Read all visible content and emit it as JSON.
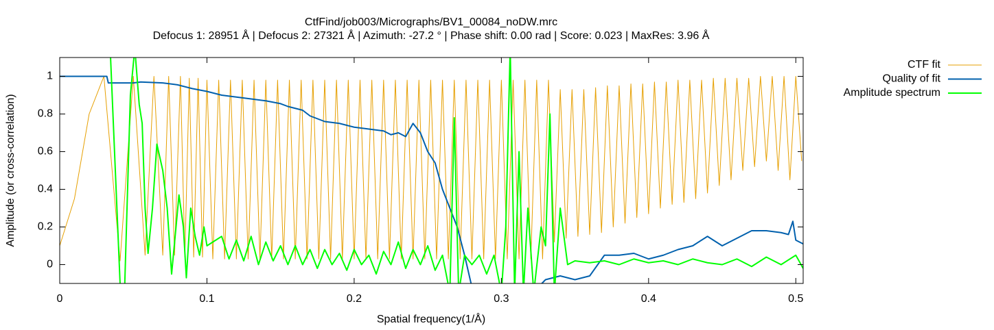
{
  "chart_data": {
    "type": "line",
    "title": "CtfFind/job003/Micrographs/BV1_00084_noDW.mrc",
    "subtitle": "Defocus 1: 28951 Å | Defocus 2: 27321 Å | Azimuth: -27.2 ° | Phase shift: 0.00 rad | Score: 0.023 | MaxRes: 3.96 Å",
    "x_label": "Spatial frequency(1/Å)",
    "y_label": "Amplitude (or cross-correlation)",
    "xlim": [
      0,
      0.505
    ],
    "ylim": [
      -0.1,
      1.1
    ],
    "xticks": [
      0,
      0.1,
      0.2,
      0.3,
      0.4,
      0.5
    ],
    "yticks": [
      0,
      0.2,
      0.4,
      0.6,
      0.8,
      1
    ],
    "grid": false,
    "legend": "top-right-outside",
    "series": [
      {
        "name": "CTF fit",
        "color": "#e69f00",
        "width": 1,
        "x": [
          0,
          0.01,
          0.02,
          0.03,
          0.041,
          0.05,
          0.058,
          0.064,
          0.07,
          0.074,
          0.078,
          0.082,
          0.085,
          0.088,
          0.091,
          0.094,
          0.097,
          0.1,
          0.104,
          0.108,
          0.112,
          0.116,
          0.12,
          0.124,
          0.128,
          0.132,
          0.136,
          0.14,
          0.144,
          0.148,
          0.152,
          0.156,
          0.16,
          0.164,
          0.168,
          0.172,
          0.176,
          0.18,
          0.184,
          0.188,
          0.192,
          0.196,
          0.2,
          0.204,
          0.208,
          0.212,
          0.216,
          0.22,
          0.224,
          0.228,
          0.232,
          0.236,
          0.24,
          0.244,
          0.248,
          0.252,
          0.256,
          0.26,
          0.264,
          0.268,
          0.272,
          0.276,
          0.28,
          0.284,
          0.288,
          0.292,
          0.296,
          0.3,
          0.304,
          0.308,
          0.312,
          0.316,
          0.32,
          0.324,
          0.328,
          0.332,
          0.336,
          0.34,
          0.344,
          0.348,
          0.352,
          0.356,
          0.36,
          0.364,
          0.368,
          0.372,
          0.376,
          0.38,
          0.384,
          0.388,
          0.392,
          0.396,
          0.4,
          0.404,
          0.408,
          0.412,
          0.416,
          0.42,
          0.424,
          0.428,
          0.432,
          0.436,
          0.44,
          0.444,
          0.448,
          0.452,
          0.456,
          0.46,
          0.464,
          0.468,
          0.472,
          0.476,
          0.48,
          0.484,
          0.488,
          0.492,
          0.496,
          0.5,
          0.504
        ],
        "values": [
          0.1,
          0.35,
          0.8,
          1,
          0.02,
          1,
          0.05,
          1,
          0.05,
          1,
          0.05,
          1,
          0.04,
          0.99,
          0.04,
          0.99,
          0.04,
          0.98,
          0.03,
          0.98,
          0.03,
          0.98,
          0.03,
          0.98,
          0.03,
          0.98,
          0.03,
          0.98,
          0.03,
          0.98,
          0.03,
          0.98,
          0.03,
          0.98,
          0.03,
          0.98,
          0.03,
          0.98,
          0.03,
          0.98,
          0.03,
          0.98,
          0.03,
          0.98,
          0.03,
          0.98,
          0.03,
          0.98,
          0.03,
          0.98,
          0.03,
          0.98,
          0.03,
          0.98,
          0.03,
          0.98,
          0.03,
          0.98,
          0.03,
          0.98,
          0.03,
          0.98,
          0.03,
          0.98,
          0.03,
          0.98,
          0.03,
          0.98,
          0.03,
          0.98,
          0.03,
          0.98,
          0.03,
          0.98,
          0.03,
          0.98,
          0.12,
          0.93,
          0.14,
          0.93,
          0.15,
          0.93,
          0.16,
          0.94,
          0.17,
          0.95,
          0.2,
          0.95,
          0.22,
          0.96,
          0.25,
          0.96,
          0.27,
          0.97,
          0.3,
          0.97,
          0.32,
          0.98,
          0.33,
          0.98,
          0.35,
          0.98,
          0.38,
          0.99,
          0.42,
          0.99,
          0.45,
          0.99,
          0.5,
          0.99,
          0.52,
          1,
          0.55,
          1,
          0.5,
          1,
          0.45,
          1,
          0.55
        ]
      },
      {
        "name": "Quality of fit",
        "color": "#0060ad",
        "width": 2,
        "x": [
          0,
          0.032,
          0.033,
          0.05,
          0.055,
          0.07,
          0.08,
          0.09,
          0.1,
          0.11,
          0.12,
          0.13,
          0.14,
          0.15,
          0.155,
          0.16,
          0.165,
          0.17,
          0.18,
          0.19,
          0.195,
          0.2,
          0.21,
          0.22,
          0.225,
          0.23,
          0.235,
          0.24,
          0.245,
          0.25,
          0.255,
          0.26,
          0.265,
          0.27,
          0.275,
          0.28,
          0.3,
          0.325,
          0.33,
          0.34,
          0.35,
          0.36,
          0.37,
          0.38,
          0.39,
          0.4,
          0.41,
          0.42,
          0.43,
          0.44,
          0.45,
          0.46,
          0.47,
          0.48,
          0.49,
          0.495,
          0.498,
          0.5,
          0.505
        ],
        "values": [
          1,
          1,
          0.965,
          0.965,
          0.97,
          0.965,
          0.955,
          0.935,
          0.92,
          0.9,
          0.89,
          0.88,
          0.87,
          0.855,
          0.84,
          0.83,
          0.82,
          0.79,
          0.76,
          0.75,
          0.74,
          0.73,
          0.72,
          0.71,
          0.69,
          0.7,
          0.68,
          0.75,
          0.7,
          0.6,
          0.54,
          0.4,
          0.3,
          0.2,
          0.05,
          -0.12,
          -0.15,
          -0.12,
          -0.08,
          -0.06,
          -0.08,
          -0.06,
          0.05,
          0.05,
          0.06,
          0.03,
          0.05,
          0.08,
          0.1,
          0.15,
          0.1,
          0.14,
          0.18,
          0.18,
          0.17,
          0.16,
          0.23,
          0.13,
          0.11
        ]
      },
      {
        "name": "Amplitude spectrum",
        "color": "#00ff00",
        "width": 2,
        "x": [
          0.034,
          0.041,
          0.044,
          0.048,
          0.051,
          0.054,
          0.056,
          0.058,
          0.06,
          0.063,
          0.066,
          0.07,
          0.073,
          0.076,
          0.079,
          0.081,
          0.084,
          0.086,
          0.089,
          0.092,
          0.095,
          0.098,
          0.1,
          0.11,
          0.115,
          0.12,
          0.125,
          0.13,
          0.135,
          0.14,
          0.145,
          0.15,
          0.155,
          0.16,
          0.165,
          0.17,
          0.175,
          0.18,
          0.185,
          0.19,
          0.195,
          0.2,
          0.205,
          0.21,
          0.215,
          0.22,
          0.225,
          0.23,
          0.235,
          0.24,
          0.245,
          0.25,
          0.255,
          0.26,
          0.265,
          0.268,
          0.271,
          0.275,
          0.28,
          0.285,
          0.29,
          0.295,
          0.3,
          0.303,
          0.306,
          0.309,
          0.312,
          0.315,
          0.318,
          0.322,
          0.327,
          0.33,
          0.333,
          0.336,
          0.34,
          0.345,
          0.35,
          0.36,
          0.37,
          0.38,
          0.39,
          0.4,
          0.41,
          0.42,
          0.43,
          0.44,
          0.45,
          0.46,
          0.47,
          0.48,
          0.49,
          0.5,
          0.505
        ],
        "values": [
          1.2,
          -0.1,
          -0.15,
          0.9,
          1.15,
          0.85,
          0.75,
          0.3,
          0.06,
          0.3,
          0.64,
          0.5,
          0.3,
          -0.05,
          0.2,
          0.37,
          0.2,
          -0.07,
          0.3,
          0.15,
          0.05,
          0.2,
          0.1,
          0.15,
          0.03,
          0.13,
          0.02,
          0.15,
          0,
          0.12,
          0.02,
          0.1,
          0,
          0.1,
          0,
          0.08,
          -0.02,
          0.08,
          0,
          0.06,
          -0.03,
          0.08,
          0,
          0.05,
          -0.05,
          0.07,
          0,
          0.12,
          -0.02,
          0.08,
          0,
          0.1,
          -0.03,
          0.05,
          -0.15,
          0.78,
          -0.15,
          0.05,
          0,
          0.05,
          -0.05,
          0.05,
          -0.15,
          0.2,
          1.15,
          -0.15,
          0.6,
          -0.15,
          0.3,
          -0.15,
          0.2,
          0.1,
          0.8,
          -0.15,
          0.3,
          0,
          0.02,
          0.01,
          0.02,
          0,
          0.03,
          0.01,
          0.02,
          0,
          0.03,
          0.01,
          0,
          0.03,
          -0.01,
          0.04,
          0,
          0.05,
          -0.02
        ]
      }
    ]
  }
}
